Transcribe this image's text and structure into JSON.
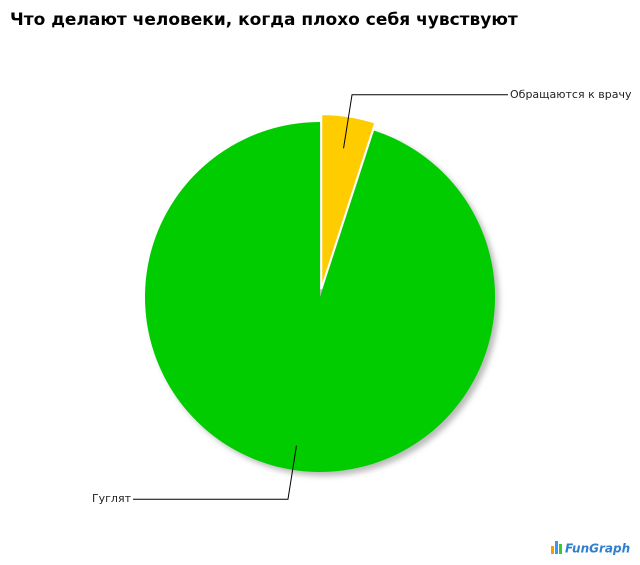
{
  "chart_data": {
    "type": "pie",
    "title": "Что делают человеки, когда плохо себя чувствуют",
    "categories": [
      "Обращаются к врачу",
      "Гуглят"
    ],
    "values": [
      5,
      95
    ],
    "colors": [
      "#ffcc00",
      "#00cc00"
    ],
    "explode": [
      true,
      false
    ]
  },
  "branding": {
    "text": "FunGraph"
  }
}
